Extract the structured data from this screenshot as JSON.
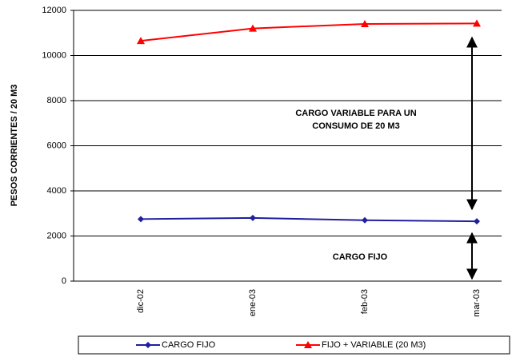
{
  "chart_data": {
    "type": "line",
    "categories": [
      "dic-02",
      "ene-03",
      "feb-03",
      "mar-03"
    ],
    "series": [
      {
        "name": "CARGO FIJO",
        "color": "#1f1f9f",
        "marker": "diamond",
        "values": [
          2750,
          2800,
          2700,
          2650
        ]
      },
      {
        "name": "FIJO + VARIABLE (20 M3)",
        "color": "#ff0000",
        "marker": "triangle",
        "values": [
          10650,
          11200,
          11400,
          11420
        ]
      }
    ],
    "ylabel": "PESOS CORRIENTES / 20 M3",
    "ylim": [
      0,
      12000
    ],
    "yticks": [
      0,
      2000,
      4000,
      6000,
      8000,
      10000,
      12000
    ],
    "grid": true,
    "annotations": [
      "CARGO  VARIABLE PARA UN",
      "CONSUMO DE 20 M3",
      "CARGO FIJO"
    ],
    "legend": "bottom"
  }
}
